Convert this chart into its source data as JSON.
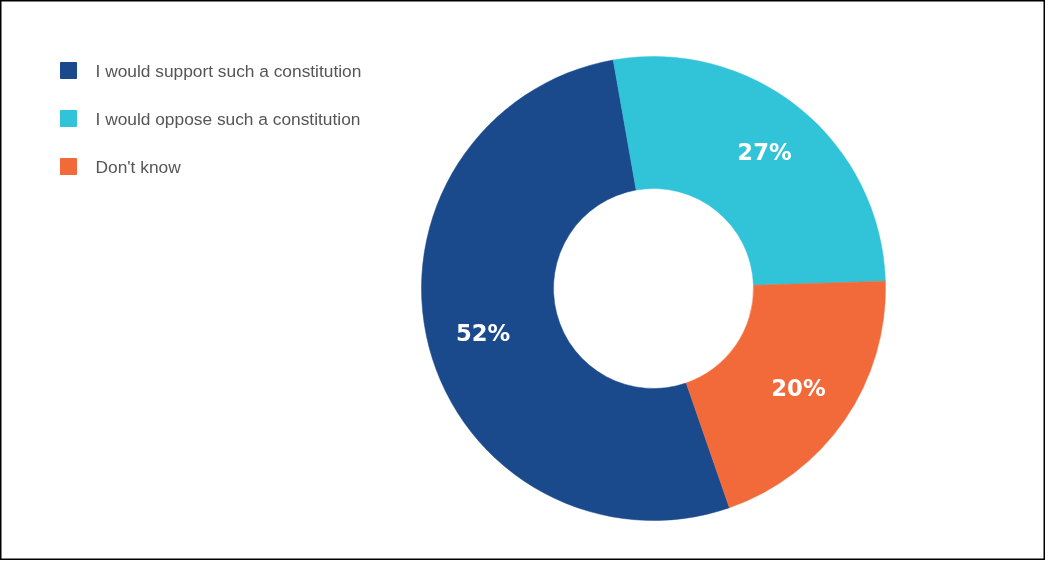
{
  "chart_data": {
    "type": "donut",
    "categories": [
      "I would support such a constitution",
      "I would oppose such a constitution",
      "Don't know"
    ],
    "values": [
      52,
      27,
      20
    ],
    "colors": [
      "#1a4a8c",
      "#31c3d8",
      "#f36a3a"
    ],
    "value_labels": [
      "52%",
      "27%",
      "20%"
    ],
    "legend": "top left"
  }
}
